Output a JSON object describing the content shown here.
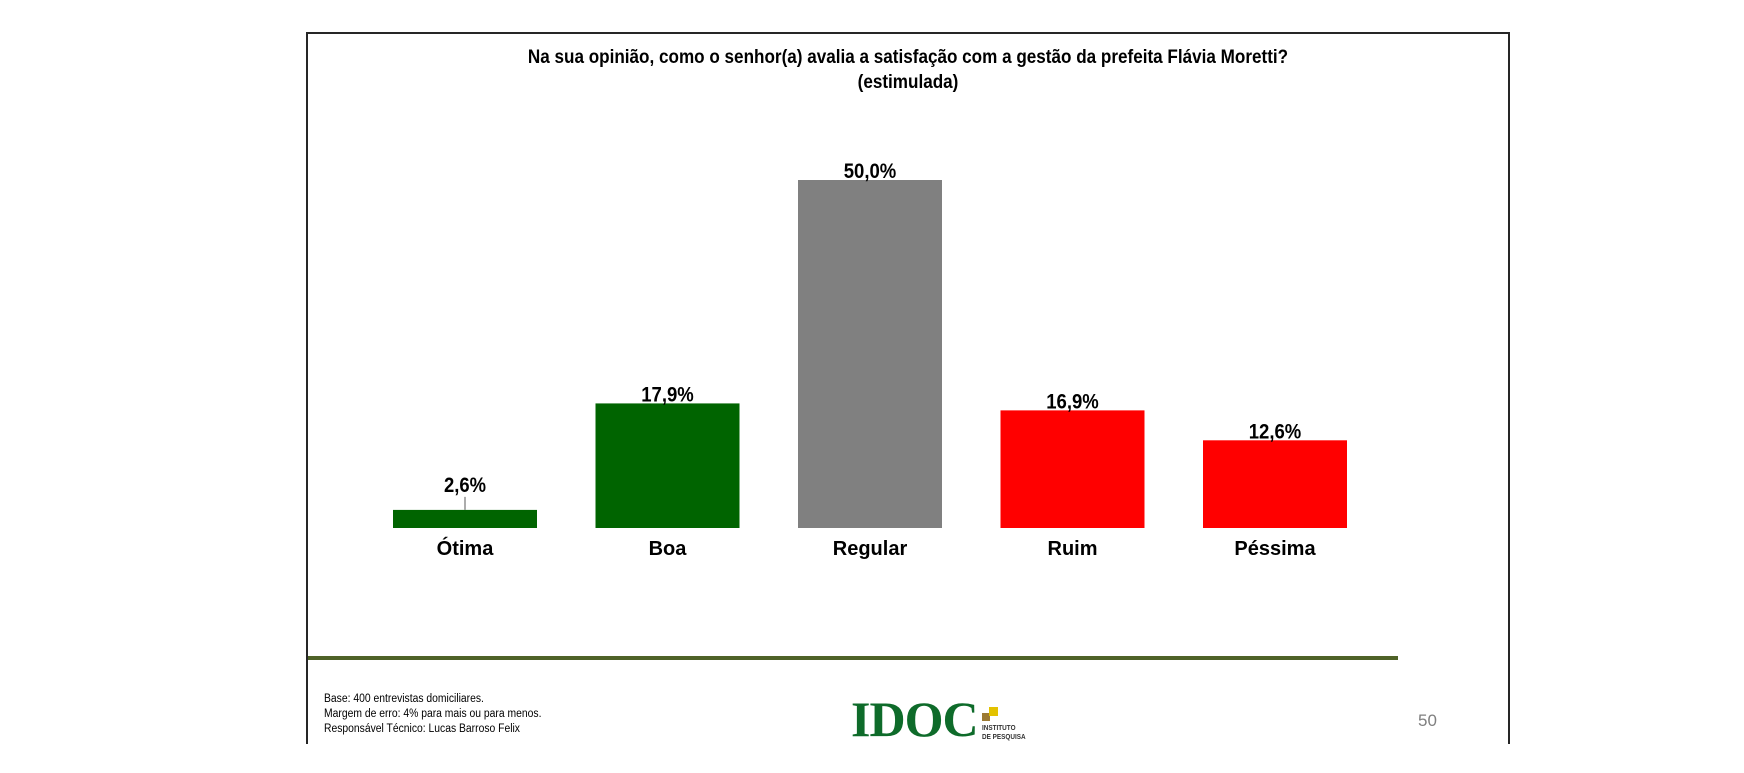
{
  "chart_data": {
    "type": "bar",
    "title": "Na sua opinião, como o senhor(a) avalia a satisfação com a gestão da prefeita Flávia Moretti?",
    "subtitle": "(estimulada)",
    "categories": [
      "Ótima",
      "Boa",
      "Regular",
      "Ruim",
      "Péssima"
    ],
    "values": [
      2.6,
      17.9,
      50.0,
      16.9,
      12.6
    ],
    "value_labels": [
      "2,6%",
      "17,9%",
      "50,0%",
      "16,9%",
      "12,6%"
    ],
    "colors": [
      "#006400",
      "#006400",
      "#808080",
      "#ff0000",
      "#ff0000"
    ],
    "xlabel": "",
    "ylabel": "",
    "ylim": [
      0,
      50
    ],
    "grid": false,
    "legend": "none",
    "unit": "%"
  },
  "footer": {
    "notes": [
      "Base: 400 entrevistas domiciliares.",
      "Margem de erro: 4% para mais ou para menos.",
      "Responsável Técnico: Lucas Barroso Felix"
    ],
    "logo": {
      "name": "IDOC",
      "subtitle_line1": "INSTITUTO",
      "subtitle_line2": "DE PESQUISA"
    },
    "page_number": "50"
  }
}
